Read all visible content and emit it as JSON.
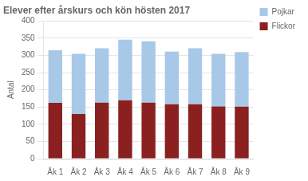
{
  "chart_data": {
    "type": "bar",
    "title": "Elever efter årskurs och kön hösten 2017",
    "ylabel": "Antal",
    "categories": [
      "Åk 1",
      "Åk 2",
      "Åk 3",
      "Åk 4",
      "Åk 5",
      "Åk 6",
      "Åk 7",
      "Åk 8",
      "Åk 9"
    ],
    "series": [
      {
        "name": "Flickor",
        "color": "#8B2020",
        "values": [
          162,
          130,
          163,
          170,
          163,
          158,
          158,
          152,
          151
        ]
      },
      {
        "name": "Pojkar",
        "color": "#A8C8E8",
        "values": [
          153,
          175,
          158,
          176,
          178,
          153,
          163,
          153,
          159
        ]
      }
    ],
    "stacked": true,
    "ylim": [
      0,
      400
    ],
    "yticks": [
      0,
      50,
      100,
      150,
      200,
      250,
      300,
      350,
      400
    ],
    "grid": true,
    "legend": "right"
  }
}
